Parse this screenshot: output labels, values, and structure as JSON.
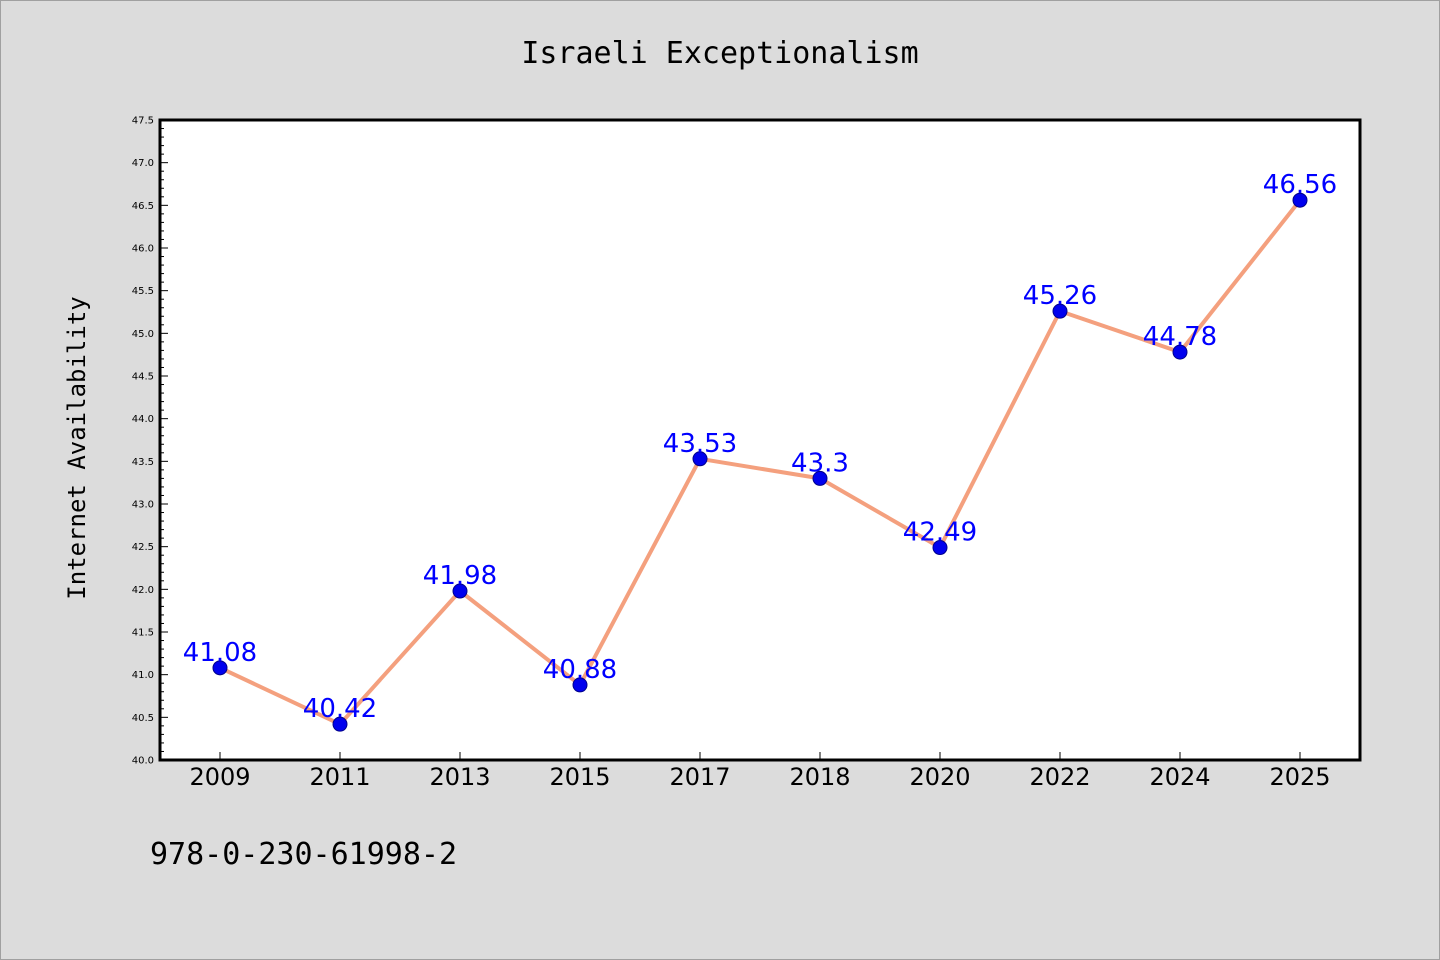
{
  "chart_data": {
    "type": "line",
    "title": "Israeli Exceptionalism",
    "xlabel": "",
    "ylabel": "Internet Availability",
    "categories": [
      "2009",
      "2011",
      "2013",
      "2015",
      "2017",
      "2018",
      "2020",
      "2022",
      "2024",
      "2025"
    ],
    "values": [
      41.08,
      40.42,
      41.98,
      40.88,
      43.53,
      43.3,
      42.49,
      45.26,
      44.78,
      46.56
    ],
    "data_labels": [
      "41.08",
      "40.42",
      "41.98",
      "40.88",
      "43.53",
      "43.3",
      "42.49",
      "45.26",
      "44.78",
      "46.56"
    ],
    "ylim": [
      40.0,
      47.5
    ],
    "yticks": [
      "40.0",
      "40.5",
      "41.0",
      "41.5",
      "42.0",
      "42.5",
      "43.0",
      "43.5",
      "44.0",
      "44.5",
      "45.0",
      "45.5",
      "46.0",
      "46.5",
      "47.0",
      "47.5"
    ],
    "grid": false,
    "line_color": "#f4a07e",
    "marker_color": "#0000ee",
    "label_color": "#0000ff"
  },
  "footer": {
    "isbn": "978-0-230-61998-2"
  }
}
